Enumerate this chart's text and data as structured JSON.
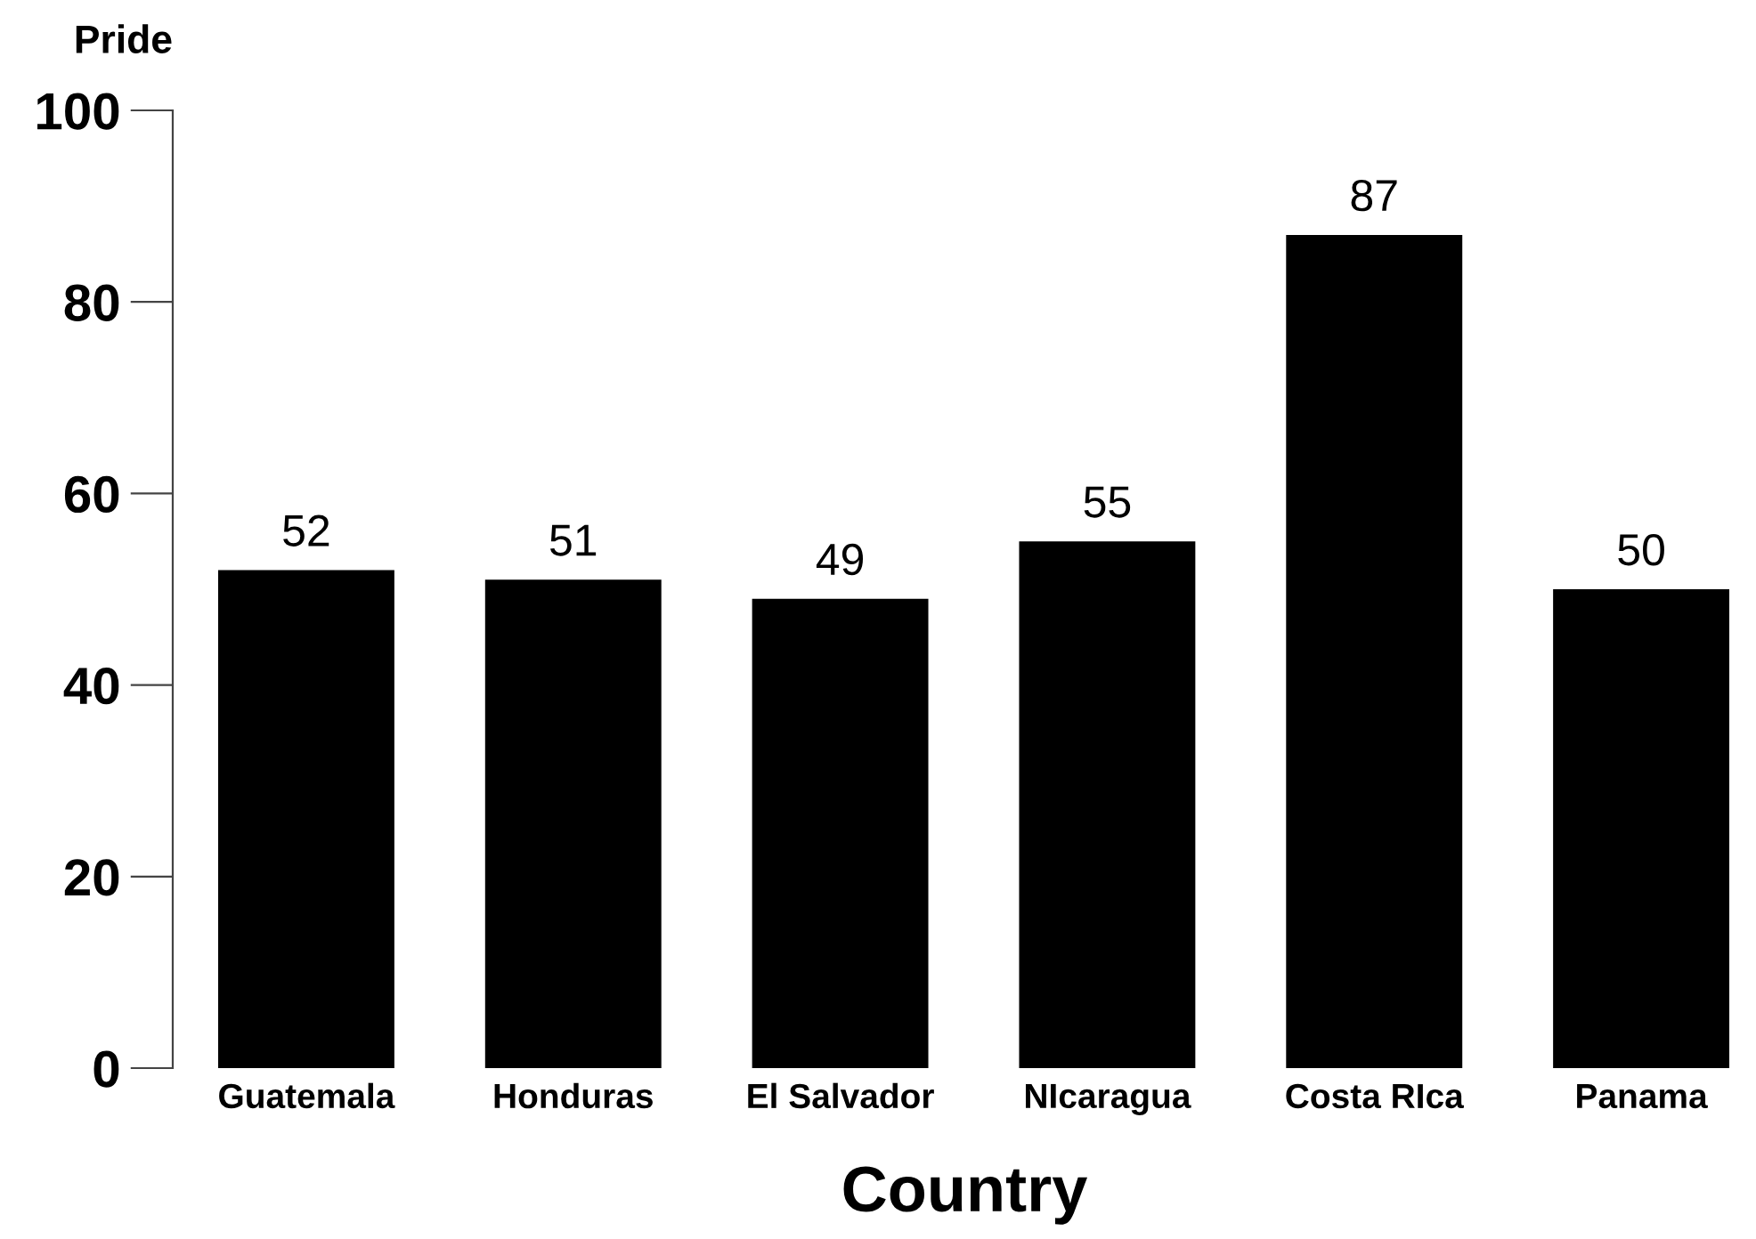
{
  "chart_data": {
    "type": "bar",
    "xlabel": "Country",
    "ylabel": "Pride",
    "categories": [
      "Guatemala",
      "Honduras",
      "El Salvador",
      "NIcaragua",
      "Costa RIca",
      "Panama"
    ],
    "values": [
      52,
      51,
      49,
      55,
      87,
      50
    ],
    "color": "#000000",
    "ylim": [
      0,
      100
    ],
    "yticks": [
      0,
      20,
      40,
      60,
      80,
      100
    ],
    "grid": false,
    "data_labels": true
  }
}
